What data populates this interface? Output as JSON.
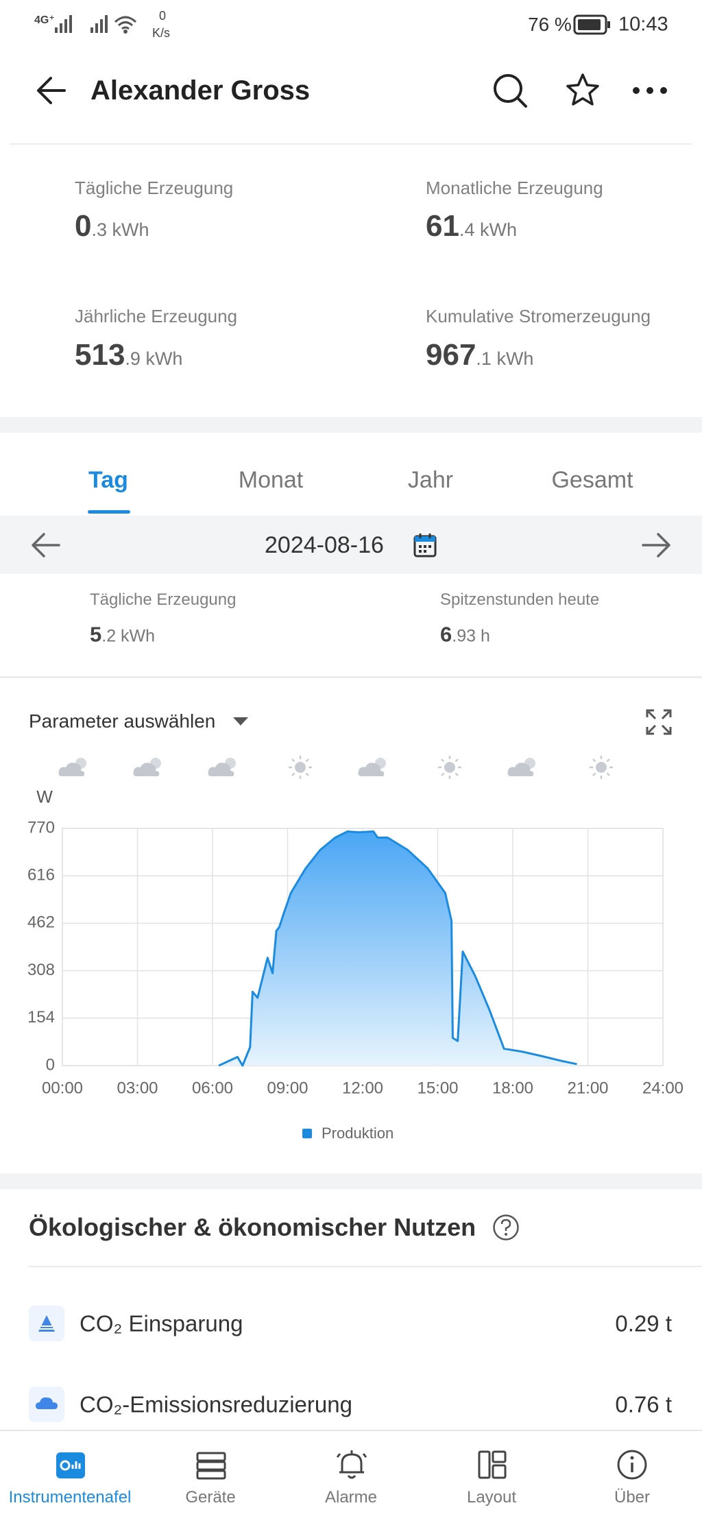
{
  "status_bar": {
    "network": "4G⁺",
    "speed_value": "0",
    "speed_unit": "K/s",
    "battery": "76 %",
    "time": "10:43"
  },
  "header": {
    "title": "Alexander Gross"
  },
  "summary": [
    {
      "label": "Tägliche Erzeugung",
      "int": "0",
      "rest": ".3 kWh"
    },
    {
      "label": "Monatliche Erzeugung",
      "int": "61",
      "rest": ".4 kWh"
    },
    {
      "label": "Jährliche Erzeugung",
      "int": "513",
      "rest": ".9 kWh"
    },
    {
      "label": "Kumulative Stromerzeugung",
      "int": "967",
      "rest": ".1 kWh"
    }
  ],
  "tabs": [
    "Tag",
    "Monat",
    "Jahr",
    "Gesamt"
  ],
  "date": "2024-08-16",
  "day_stats": [
    {
      "label": "Tägliche Erzeugung",
      "int": "5",
      "rest": ".2 kWh"
    },
    {
      "label": "Spitzenstunden heute",
      "int": "6",
      "rest": ".93 h"
    }
  ],
  "parameter_select": "Parameter auswählen",
  "chart_data": {
    "type": "area",
    "y_label": "W",
    "x": [
      6.25,
      7.0,
      7.2,
      7.5,
      7.6,
      7.8,
      8.2,
      8.4,
      8.55,
      8.67,
      8.83,
      9.13,
      9.72,
      10.3,
      10.9,
      11.4,
      11.85,
      12.43,
      12.6,
      13.0,
      13.8,
      14.6,
      15.3,
      15.55,
      15.6,
      15.8,
      16.0,
      16.5,
      17.07,
      17.65,
      18.4,
      19.2,
      19.97,
      20.56
    ],
    "series": [
      {
        "name": "Produktion",
        "color": "#1b8be0",
        "values": [
          0,
          28,
          0,
          60,
          240,
          220,
          350,
          300,
          437,
          450,
          490,
          560,
          640,
          700,
          740,
          760,
          757,
          760,
          740,
          740,
          700,
          640,
          560,
          470,
          90,
          80,
          370,
          290,
          180,
          55,
          45,
          30,
          15,
          5
        ]
      }
    ],
    "xlim": [
      0,
      24
    ],
    "xticks": [
      {
        "value": 0,
        "label": "00:00"
      },
      {
        "value": 3,
        "label": "03:00"
      },
      {
        "value": 6,
        "label": "06:00"
      },
      {
        "value": 9,
        "label": "09:00"
      },
      {
        "value": 12,
        "label": "12:00"
      },
      {
        "value": 15,
        "label": "15:00"
      },
      {
        "value": 18,
        "label": "18:00"
      },
      {
        "value": 21,
        "label": "21:00"
      },
      {
        "value": 24,
        "label": "24:00"
      }
    ],
    "ylim": [
      0,
      770
    ],
    "yticks": [
      0,
      154,
      308,
      462,
      616,
      770
    ],
    "grid": true
  },
  "benefits": {
    "title": "Ökologischer & ökonomischer Nutzen",
    "rows": [
      {
        "label": "CO₂ Einsparung",
        "value": "0.29 t"
      },
      {
        "label": "CO₂-Emissionsreduzierung",
        "value": "0.76 t"
      }
    ]
  },
  "nav": [
    "Instrumentenafel",
    "Geräte",
    "Alarme",
    "Layout",
    "Über"
  ]
}
